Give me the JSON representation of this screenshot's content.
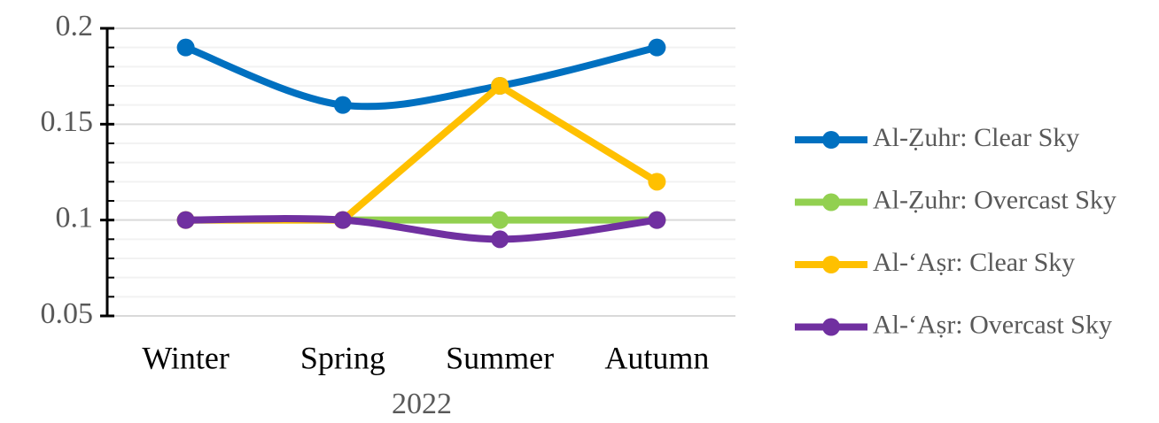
{
  "chart_data": {
    "type": "line",
    "x_label": "2022",
    "categories": [
      "Winter",
      "Spring",
      "Summer",
      "Autumn"
    ],
    "series": [
      {
        "name": "Al-Ẓuhr: Clear Sky",
        "color": "#0070c0",
        "smooth": true,
        "values": [
          0.19,
          0.16,
          0.17,
          0.19
        ]
      },
      {
        "name": "Al-Ẓuhr: Overcast Sky",
        "color": "#92d050",
        "smooth": false,
        "values": [
          0.1,
          0.1,
          0.1,
          0.1
        ]
      },
      {
        "name": "Al-‘Aṣr: Clear Sky",
        "color": "#ffc000",
        "smooth": false,
        "values": [
          0.1,
          0.1,
          0.17,
          0.12
        ]
      },
      {
        "name": "Al-‘Aṣr: Overcast Sky",
        "color": "#7030a0",
        "smooth": true,
        "values": [
          0.1,
          0.1,
          0.09,
          0.1
        ]
      }
    ],
    "ylim": [
      0.05,
      0.2
    ],
    "yticks": [
      0.05,
      0.1,
      0.15,
      0.2
    ],
    "minor_yticks": [
      0.06,
      0.07,
      0.08,
      0.09,
      0.11,
      0.12,
      0.13,
      0.14,
      0.16,
      0.17,
      0.18,
      0.19
    ],
    "grid": true,
    "legend": "right"
  }
}
